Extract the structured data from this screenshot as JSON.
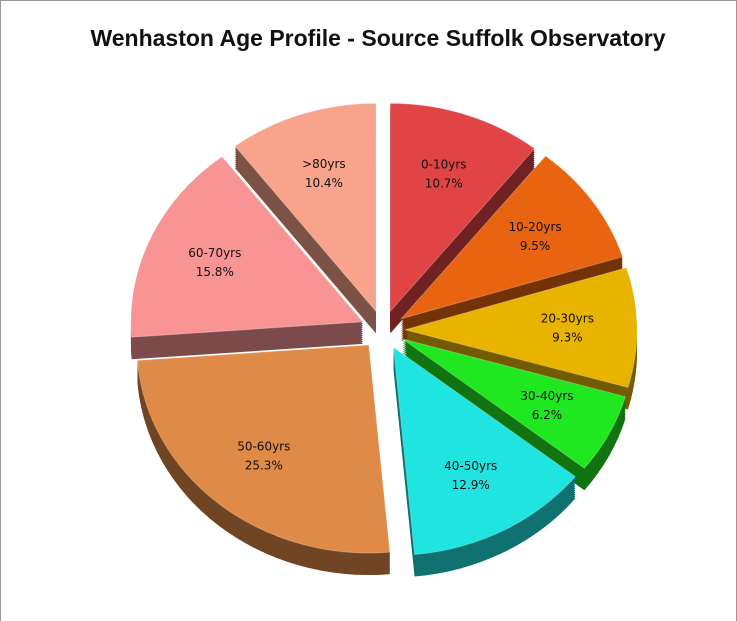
{
  "chart_data": {
    "type": "pie",
    "title": "Wenhaston Age Profile - Source Suffolk Observatory",
    "categories": [
      "0-10yrs",
      "10-20yrs",
      "20-30yrs",
      "30-40yrs",
      "40-50yrs",
      "50-60yrs",
      "60-70yrs",
      ">80yrs"
    ],
    "values": [
      10.7,
      9.5,
      9.3,
      6.2,
      12.9,
      25.3,
      15.8,
      10.4
    ],
    "value_labels": [
      "10.7%",
      "9.5%",
      "9.3%",
      "6.2%",
      "12.9%",
      "25.3%",
      "15.8%",
      "10.4%"
    ],
    "colors": [
      "#e04444",
      "#e86410",
      "#e8b400",
      "#20e820",
      "#20e4e0",
      "#e08a48",
      "#f89494",
      "#f8a48c"
    ]
  }
}
